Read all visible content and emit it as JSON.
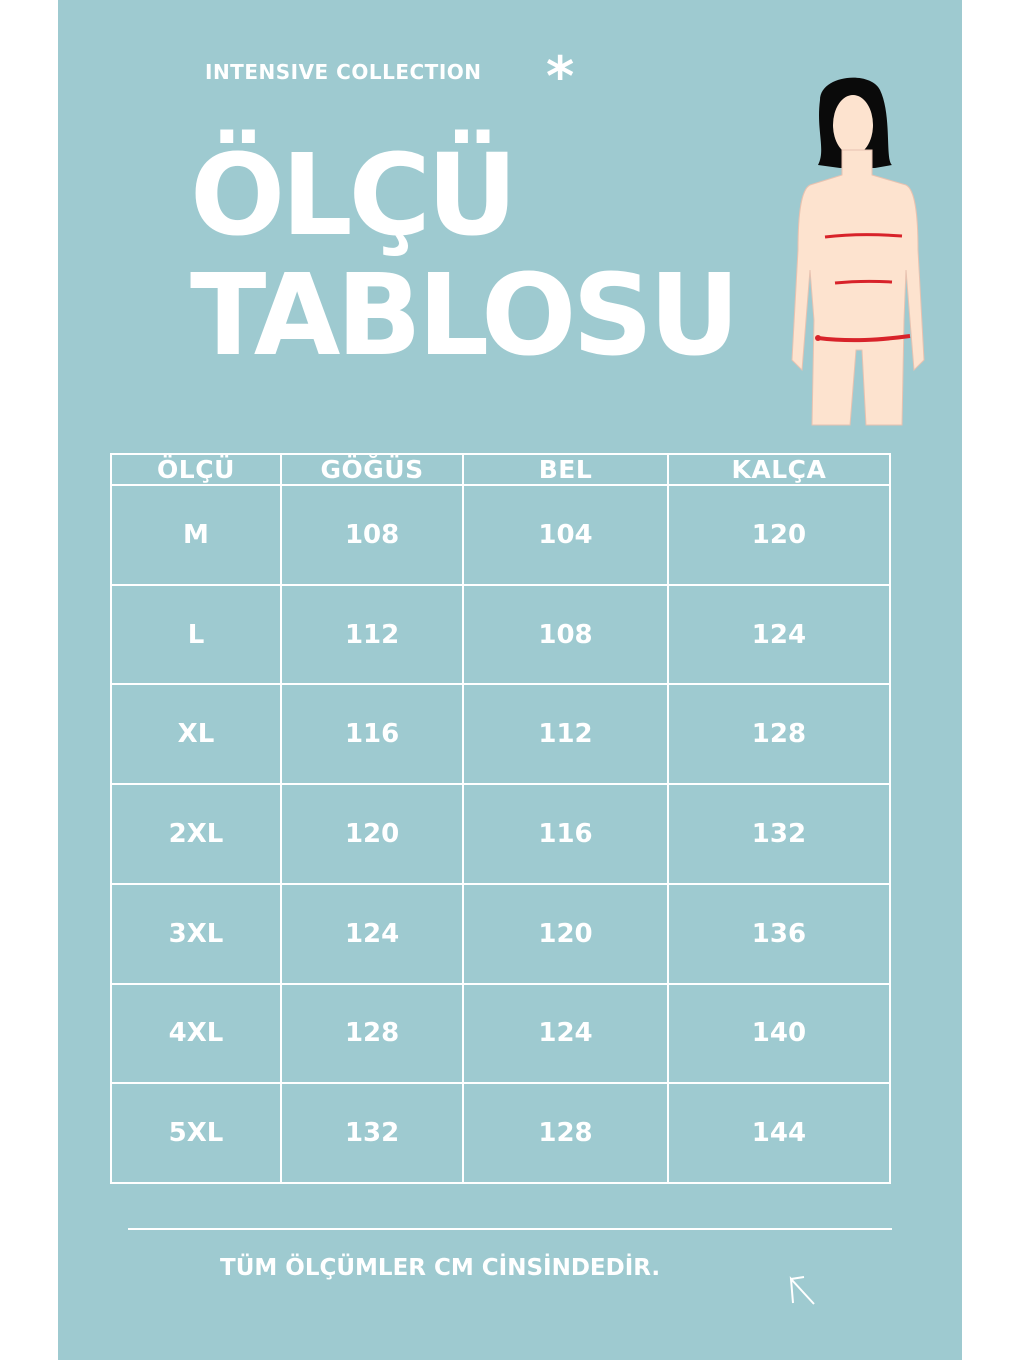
{
  "brand": "INTENSIVE COLLECTION",
  "star_icon": "asterisk",
  "title_line1": "ÖLÇÜ",
  "title_line2": "TABLOSU",
  "colors": {
    "background": "#9ecad0",
    "text": "#ffffff",
    "measure_lines": "#d8232a"
  },
  "table": {
    "headers": [
      "ÖLÇÜ",
      "GÖĞÜS",
      "BEL",
      "KALÇA"
    ],
    "rows": [
      [
        "M",
        "108",
        "104",
        "120"
      ],
      [
        "L",
        "112",
        "108",
        "124"
      ],
      [
        "XL",
        "116",
        "112",
        "128"
      ],
      [
        "2XL",
        "120",
        "116",
        "132"
      ],
      [
        "3XL",
        "124",
        "120",
        "136"
      ],
      [
        "4XL",
        "128",
        "124",
        "140"
      ],
      [
        "5XL",
        "132",
        "128",
        "144"
      ]
    ]
  },
  "note": "TÜM ÖLÇÜMLER CM CİNSİNDEDİR.",
  "arrow_icon": "arrow-up-left"
}
